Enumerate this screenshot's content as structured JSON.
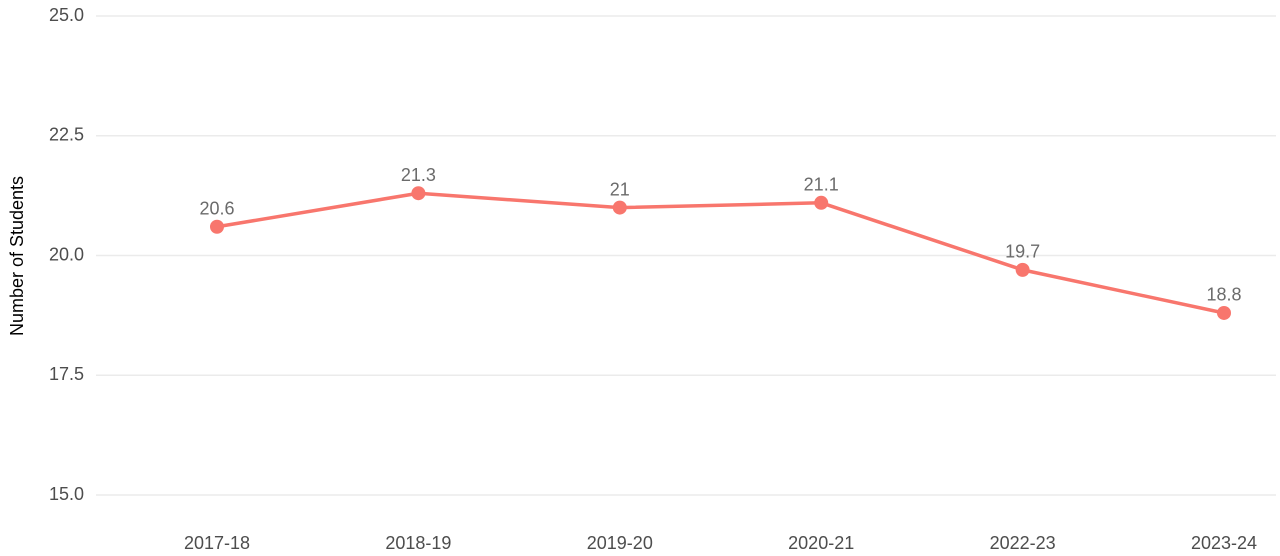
{
  "chart_data": {
    "type": "line",
    "y_label": "Number of Students",
    "categories": [
      "2017-18",
      "2018-19",
      "2019-20",
      "2020-21",
      "2022-23",
      "2023-24"
    ],
    "values": [
      20.6,
      21.3,
      21,
      21.1,
      19.7,
      18.8
    ],
    "color": "#f8766d",
    "ylim": [
      15,
      25
    ],
    "yticks": [
      {
        "value": 15,
        "label": "15.0"
      },
      17.5,
      {
        "value": 20,
        "label": "20.0"
      },
      22.5,
      {
        "value": 25,
        "label": "25.0"
      }
    ],
    "grid": true
  }
}
